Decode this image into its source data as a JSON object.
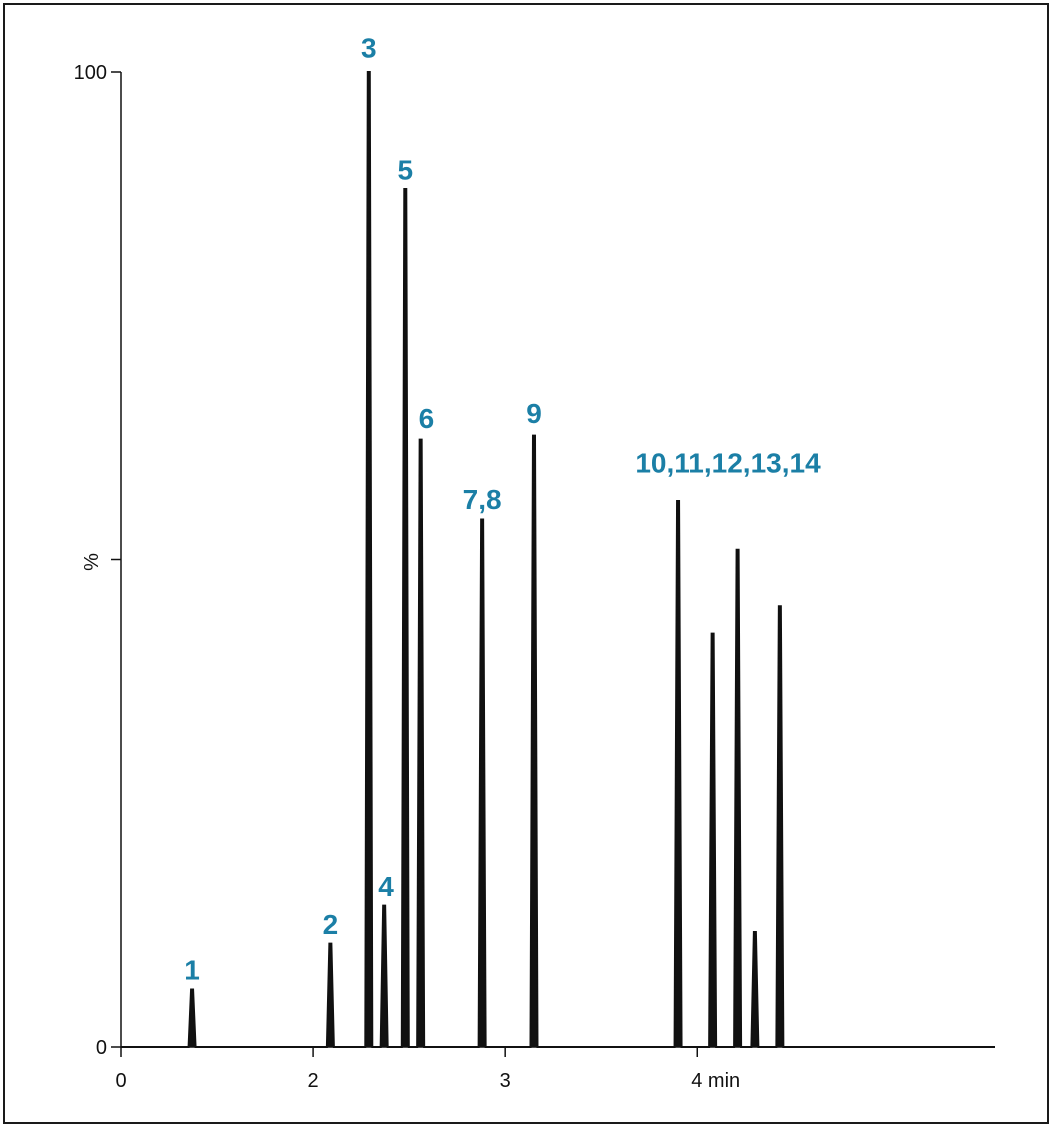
{
  "chart_data": {
    "type": "line",
    "xlabel": "",
    "x_unit_label": "min",
    "ylabel": "%",
    "xlim": [
      0,
      4.55
    ],
    "ylim": [
      0,
      100
    ],
    "x_ticks": [
      {
        "value": 0,
        "label": "0"
      },
      {
        "value": 1,
        "label": "2"
      },
      {
        "value": 2,
        "label": "3"
      },
      {
        "value": 3,
        "label": "4 min"
      }
    ],
    "y_ticks": [
      {
        "value": 0,
        "label": "0"
      },
      {
        "value": 50,
        "label": ""
      },
      {
        "value": 100,
        "label": "100"
      }
    ],
    "peaks": [
      {
        "rt": 0.37,
        "height": 5.9
      },
      {
        "rt": 1.09,
        "height": 10.6
      },
      {
        "rt": 1.29,
        "height": 100
      },
      {
        "rt": 1.37,
        "height": 14.5
      },
      {
        "rt": 1.48,
        "height": 88
      },
      {
        "rt": 1.56,
        "height": 62.3
      },
      {
        "rt": 1.88,
        "height": 54.1
      },
      {
        "rt": 2.15,
        "height": 62.7
      },
      {
        "rt": 2.9,
        "height": 56
      },
      {
        "rt": 3.08,
        "height": 42.4
      },
      {
        "rt": 3.21,
        "height": 51
      },
      {
        "rt": 3.3,
        "height": 11.8
      },
      {
        "rt": 3.43,
        "height": 45.2
      }
    ],
    "peak_labels": [
      {
        "text": "1",
        "x": 0.37,
        "y": 6.9
      },
      {
        "text": "2",
        "x": 1.09,
        "y": 11.6
      },
      {
        "text": "3",
        "x": 1.29,
        "y": 101.5
      },
      {
        "text": "4",
        "x": 1.38,
        "y": 15.5
      },
      {
        "text": "5",
        "x": 1.48,
        "y": 89
      },
      {
        "text": "6",
        "x": 1.59,
        "y": 63.5
      },
      {
        "text": "7,8",
        "x": 1.88,
        "y": 55.2
      },
      {
        "text": "9",
        "x": 2.15,
        "y": 64
      },
      {
        "text": "10,11,12,13,14",
        "x": 3.16,
        "y": 58.9
      }
    ],
    "colors": {
      "trace": "#111111",
      "label": "#1b7fa6",
      "axis": "#111111"
    }
  }
}
